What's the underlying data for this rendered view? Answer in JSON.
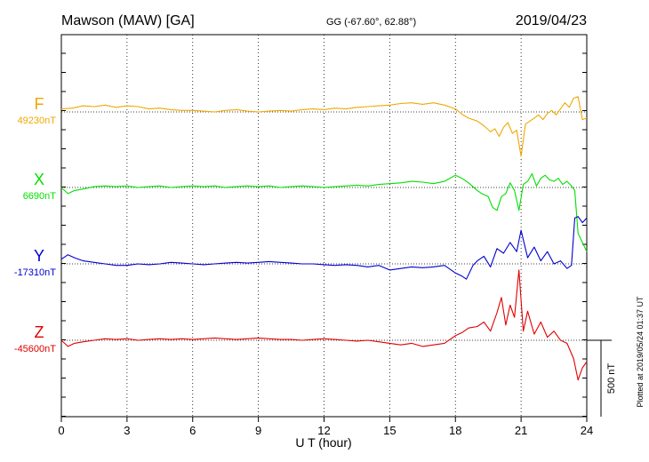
{
  "header": {
    "station": "Mawson (MAW)  [GA]",
    "coords": "GG (-67.60°,  62.88°)",
    "date": "2019/04/23"
  },
  "plotted_note": "Plotted at 2019/05/24 01:37 UT",
  "chart_data": {
    "type": "line",
    "xlabel": "U T (hour)",
    "xlim": [
      0,
      24
    ],
    "xticks": [
      "0",
      "3",
      "6",
      "9",
      "12",
      "15",
      "18",
      "21",
      "24"
    ],
    "grid": true,
    "scale_bar": {
      "label": "500 nT",
      "value_nT": 500
    },
    "series": [
      {
        "name": "F",
        "baseline_label": "49230nT",
        "baseline_nT": 49230,
        "color": "#f0a800",
        "x": [
          0,
          0.5,
          1,
          1.5,
          2,
          2.5,
          3,
          3.5,
          4,
          4.5,
          5,
          5.5,
          6,
          6.5,
          7,
          7.5,
          8,
          8.5,
          9,
          9.5,
          10,
          10.5,
          11,
          11.5,
          12,
          12.5,
          13,
          13.5,
          14,
          14.5,
          15,
          15.5,
          16,
          16.5,
          17,
          17.5,
          18,
          18.3,
          18.6,
          19,
          19.3,
          19.6,
          19.8,
          20,
          20.2,
          20.4,
          20.6,
          20.8,
          21,
          21.2,
          21.4,
          21.6,
          21.8,
          22,
          22.2,
          22.4,
          22.6,
          22.8,
          23,
          23.2,
          23.4,
          23.6,
          23.8,
          24
        ],
        "y_offset_nT": [
          20,
          25,
          40,
          35,
          45,
          30,
          40,
          35,
          20,
          25,
          15,
          10,
          10,
          5,
          0,
          10,
          15,
          5,
          0,
          5,
          10,
          5,
          15,
          20,
          15,
          25,
          20,
          30,
          35,
          40,
          45,
          55,
          60,
          50,
          60,
          45,
          20,
          -15,
          -40,
          -60,
          -90,
          -130,
          -110,
          -160,
          -100,
          -70,
          -140,
          -120,
          -290,
          -80,
          -60,
          -40,
          -20,
          -50,
          -10,
          10,
          -20,
          20,
          60,
          30,
          90,
          100,
          -50,
          -40
        ]
      },
      {
        "name": "X",
        "baseline_label": "6690nT",
        "baseline_nT": 6690,
        "color": "#00e000",
        "x": [
          0,
          0.3,
          0.6,
          1,
          1.5,
          2,
          2.5,
          3,
          3.5,
          4,
          4.5,
          5,
          5.5,
          6,
          6.5,
          7,
          7.5,
          8,
          8.5,
          9,
          9.5,
          10,
          10.5,
          11,
          11.5,
          12,
          12.5,
          13,
          13.5,
          14,
          14.5,
          15,
          15.5,
          16,
          16.5,
          17,
          17.5,
          18,
          18.3,
          18.6,
          19,
          19.2,
          19.5,
          19.7,
          19.9,
          20.1,
          20.3,
          20.5,
          20.7,
          20.9,
          21.1,
          21.3,
          21.5,
          21.7,
          21.9,
          22.1,
          22.3,
          22.5,
          22.7,
          22.9,
          23.1,
          23.3,
          23.45,
          23.6,
          23.8,
          24
        ],
        "y_offset_nT": [
          0,
          -40,
          -20,
          -10,
          5,
          10,
          5,
          10,
          0,
          5,
          10,
          0,
          5,
          10,
          5,
          10,
          0,
          5,
          10,
          5,
          10,
          0,
          5,
          10,
          5,
          0,
          5,
          10,
          15,
          10,
          20,
          25,
          30,
          40,
          35,
          25,
          40,
          80,
          60,
          30,
          -20,
          -40,
          -60,
          -130,
          -150,
          -60,
          -40,
          30,
          -20,
          -150,
          20,
          40,
          90,
          10,
          60,
          80,
          50,
          40,
          60,
          20,
          40,
          10,
          -20,
          -300,
          -360,
          -420
        ]
      },
      {
        "name": "Y",
        "baseline_label": "-17310nT",
        "baseline_nT": -17310,
        "color": "#0000d0",
        "x": [
          0,
          0.3,
          0.6,
          1,
          1.5,
          2,
          2.5,
          3,
          3.5,
          4,
          4.5,
          5,
          5.5,
          6,
          6.5,
          7,
          7.5,
          8,
          8.5,
          9,
          9.5,
          10,
          10.5,
          11,
          11.5,
          12,
          12.5,
          13,
          13.5,
          14,
          14.5,
          15,
          15.5,
          16,
          16.5,
          17,
          17.5,
          18,
          18.3,
          18.5,
          18.8,
          19,
          19.3,
          19.6,
          19.9,
          20.2,
          20.5,
          20.8,
          21,
          21.3,
          21.6,
          21.9,
          22.2,
          22.5,
          22.8,
          23.1,
          23.3,
          23.45,
          23.6,
          23.8,
          24
        ],
        "y_offset_nT": [
          30,
          60,
          40,
          20,
          10,
          0,
          -10,
          -10,
          0,
          -5,
          0,
          10,
          5,
          0,
          -5,
          0,
          5,
          10,
          5,
          10,
          15,
          10,
          5,
          0,
          0,
          -5,
          -10,
          -5,
          -10,
          -20,
          -10,
          -40,
          -30,
          -20,
          -25,
          -20,
          -10,
          -60,
          -80,
          -100,
          -10,
          20,
          50,
          -20,
          100,
          70,
          140,
          80,
          220,
          40,
          110,
          20,
          80,
          0,
          20,
          -30,
          -10,
          300,
          310,
          270,
          300
        ]
      },
      {
        "name": "Z",
        "baseline_label": "-45600nT",
        "baseline_nT": -45600,
        "color": "#e00000",
        "x": [
          0,
          0.3,
          0.6,
          1,
          1.5,
          2,
          2.5,
          3,
          3.5,
          4,
          4.5,
          5,
          5.5,
          6,
          6.5,
          7,
          7.5,
          8,
          8.5,
          9,
          9.5,
          10,
          10.5,
          11,
          11.5,
          12,
          12.5,
          13,
          13.5,
          14,
          14.5,
          15,
          15.5,
          16,
          16.5,
          17,
          17.5,
          18,
          18.3,
          18.6,
          19,
          19.3,
          19.6,
          19.9,
          20.1,
          20.3,
          20.5,
          20.7,
          20.9,
          21.1,
          21.3,
          21.6,
          21.9,
          22.2,
          22.5,
          22.8,
          23.1,
          23.4,
          23.6,
          23.8,
          24
        ],
        "y_offset_nT": [
          0,
          -40,
          -20,
          -10,
          0,
          10,
          5,
          10,
          0,
          5,
          10,
          5,
          10,
          5,
          10,
          15,
          10,
          5,
          10,
          15,
          10,
          5,
          5,
          0,
          5,
          10,
          5,
          0,
          -5,
          0,
          -10,
          -20,
          -30,
          -20,
          -40,
          -30,
          -20,
          30,
          50,
          80,
          90,
          120,
          60,
          180,
          280,
          100,
          230,
          150,
          460,
          60,
          190,
          40,
          120,
          20,
          60,
          0,
          -20,
          -120,
          -260,
          -180,
          -140
        ]
      }
    ]
  }
}
